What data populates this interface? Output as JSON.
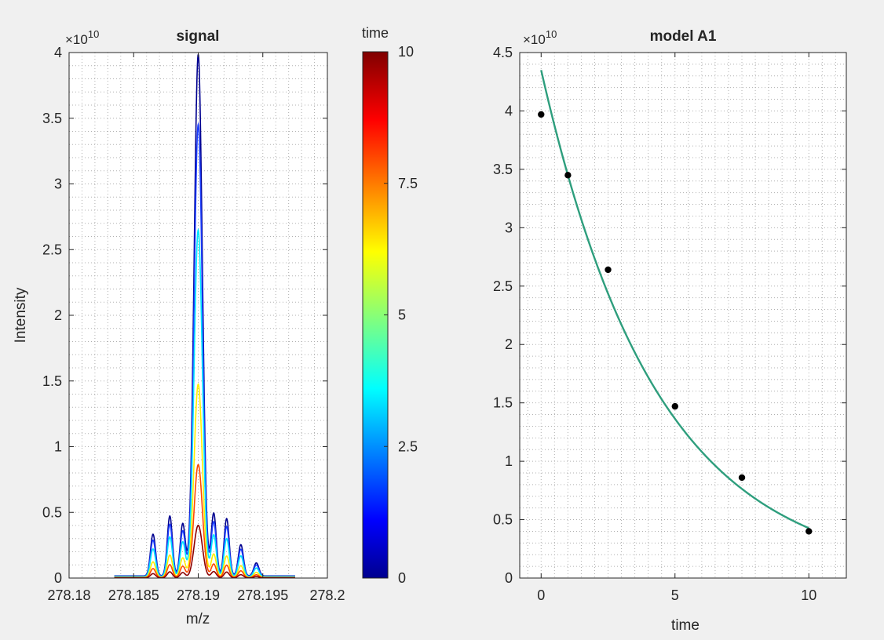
{
  "chart_data": [
    {
      "type": "line",
      "title": "signal",
      "xlabel": "m/z",
      "ylabel": "Intensity",
      "y_exponent_label": "×10",
      "y_exponent": "10",
      "xlim": [
        278.18,
        278.2
      ],
      "ylim": [
        0,
        4
      ],
      "x_ticks": [
        278.18,
        278.185,
        278.19,
        278.195,
        278.2
      ],
      "x_tick_labels": [
        "278.18",
        "278.185",
        "278.19",
        "278.195",
        "278.2"
      ],
      "y_ticks": [
        0,
        0.5,
        1,
        1.5,
        2,
        2.5,
        3,
        3.5,
        4
      ],
      "y_tick_labels": [
        "0",
        "0.5",
        "1",
        "1.5",
        "2",
        "2.5",
        "3",
        "3.5",
        "4"
      ],
      "grid": "minor dotted",
      "peak_center": 278.19,
      "peak_width": 0.00045,
      "series": [
        {
          "time": 0,
          "color": "#00008f",
          "peak": 3.97
        },
        {
          "time": 1,
          "color": "#1a3dff",
          "peak": 3.44
        },
        {
          "time": 2.5,
          "color": "#00e6ff",
          "peak": 2.64
        },
        {
          "time": 5,
          "color": "#ffef00",
          "peak": 1.47
        },
        {
          "time": 7.5,
          "color": "#ff4a00",
          "peak": 0.86
        },
        {
          "time": 10,
          "color": "#8c0000",
          "peak": 0.4
        }
      ],
      "side_peaks": [
        {
          "x": 278.1865,
          "rel": 0.08
        },
        {
          "x": 278.1878,
          "rel": 0.115
        },
        {
          "x": 278.1888,
          "rel": 0.1
        },
        {
          "x": 278.1912,
          "rel": 0.12
        },
        {
          "x": 278.1922,
          "rel": 0.11
        },
        {
          "x": 278.1933,
          "rel": 0.06
        },
        {
          "x": 278.1945,
          "rel": 0.025
        }
      ]
    },
    {
      "type": "colorbar",
      "label": "time",
      "range": [
        0,
        10
      ],
      "ticks": [
        0,
        2.5,
        5,
        7.5,
        10
      ],
      "tick_labels": [
        "0",
        "2.5",
        "5",
        "7.5",
        "10"
      ],
      "colormap": "jet"
    },
    {
      "type": "scatter",
      "title": "model A1",
      "xlabel": "time",
      "ylabel": "",
      "y_exponent_label": "×10",
      "y_exponent": "10",
      "xlim": [
        -0.8,
        11.4
      ],
      "ylim": [
        0,
        4.5
      ],
      "x_ticks": [
        0,
        5,
        10
      ],
      "x_tick_labels": [
        "0",
        "5",
        "10"
      ],
      "y_ticks": [
        0,
        0.5,
        1,
        1.5,
        2,
        2.5,
        3,
        3.5,
        4,
        4.5
      ],
      "y_tick_labels": [
        "0",
        "0.5",
        "1",
        "1.5",
        "2",
        "2.5",
        "3",
        "3.5",
        "4",
        "4.5"
      ],
      "grid": "minor dotted",
      "points": [
        {
          "x": 0,
          "y": 3.97
        },
        {
          "x": 1,
          "y": 3.45
        },
        {
          "x": 2.5,
          "y": 2.64
        },
        {
          "x": 5,
          "y": 1.47
        },
        {
          "x": 7.5,
          "y": 0.86
        },
        {
          "x": 10,
          "y": 0.4
        }
      ],
      "point_color": "#000000",
      "fit": {
        "model": "exponential",
        "a": 4.35,
        "k": 0.232,
        "x_range": [
          0,
          10
        ],
        "color": "#2e9e7d"
      }
    }
  ]
}
